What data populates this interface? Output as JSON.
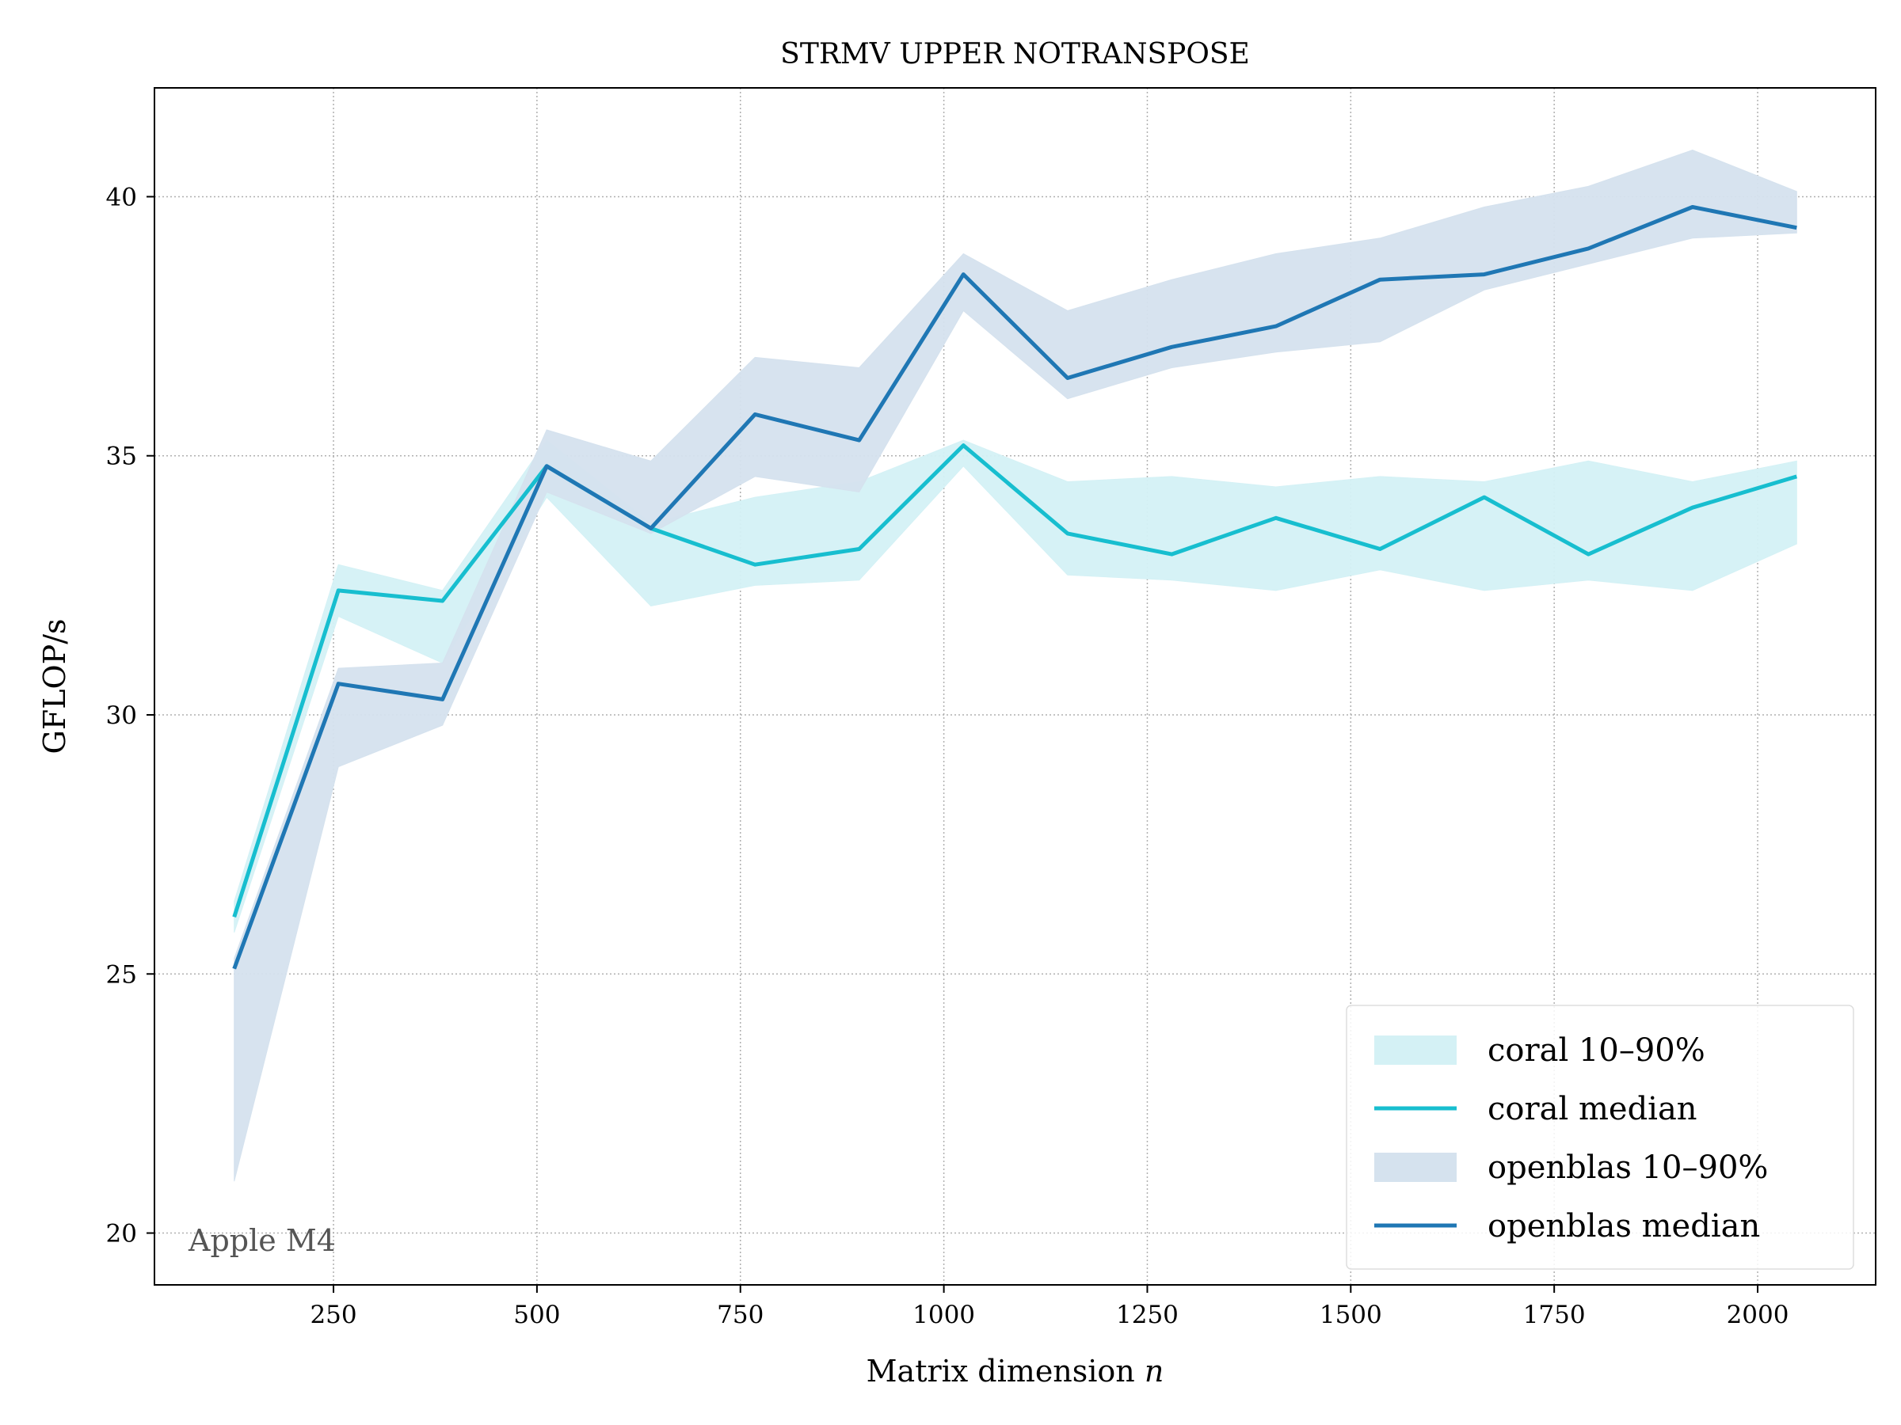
{
  "chart_data": {
    "type": "line",
    "title": "STRMV UPPER NOTRANSPOSE",
    "xlabel_text": "Matrix dimension ",
    "xlabel_var": "n",
    "ylabel": "GFLOP/s",
    "annotation": "Apple M4",
    "xlim": [
      30,
      2145
    ],
    "ylim": [
      19.0,
      42.1
    ],
    "xticks": [
      250,
      500,
      750,
      1000,
      1250,
      1500,
      1750,
      2000
    ],
    "yticks": [
      20,
      25,
      30,
      35,
      40
    ],
    "grid": true,
    "legend_position": "lower-right",
    "x": [
      128,
      256,
      384,
      512,
      640,
      768,
      896,
      1024,
      1152,
      1280,
      1408,
      1536,
      1664,
      1792,
      1920,
      2048
    ],
    "series": [
      {
        "name": "coral median",
        "band_name": "coral 10–90%",
        "color": "#17becf",
        "band_color": "#d4f1f5",
        "median": [
          26.1,
          32.4,
          32.2,
          34.8,
          33.6,
          32.9,
          33.2,
          35.2,
          33.5,
          33.1,
          33.8,
          33.2,
          34.2,
          33.1,
          34.0,
          34.6
        ],
        "p10": [
          25.8,
          31.9,
          31.0,
          34.2,
          32.1,
          32.5,
          32.6,
          34.8,
          32.7,
          32.6,
          32.4,
          32.8,
          32.4,
          32.6,
          32.4,
          33.3
        ],
        "p90": [
          26.4,
          32.9,
          32.4,
          35.3,
          33.7,
          34.2,
          34.5,
          35.3,
          34.5,
          34.6,
          34.4,
          34.6,
          34.5,
          34.9,
          34.5,
          34.9
        ]
      },
      {
        "name": "openblas median",
        "band_name": "openblas 10–90%",
        "color": "#1f77b4",
        "band_color": "#d5e2ee",
        "median": [
          25.1,
          30.6,
          30.3,
          34.8,
          33.6,
          35.8,
          35.3,
          38.5,
          36.5,
          37.1,
          37.5,
          38.4,
          38.5,
          39.0,
          39.8,
          39.4
        ],
        "p10": [
          21.0,
          29.0,
          29.8,
          34.3,
          33.5,
          34.6,
          34.3,
          37.8,
          36.1,
          36.7,
          37.0,
          37.2,
          38.2,
          38.7,
          39.2,
          39.3
        ],
        "p90": [
          25.3,
          30.9,
          31.0,
          35.5,
          34.9,
          36.9,
          36.7,
          38.9,
          37.8,
          38.4,
          38.9,
          39.2,
          39.8,
          40.2,
          40.9,
          40.1
        ]
      }
    ]
  }
}
